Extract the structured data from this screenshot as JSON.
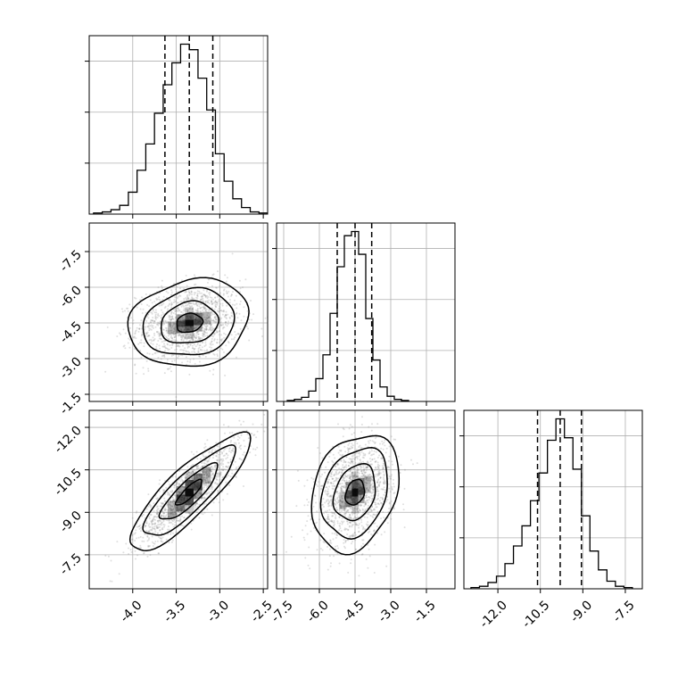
{
  "chart_data": {
    "type": "corner",
    "title": "",
    "parameters": [
      {
        "key": "p1",
        "label": "",
        "range": [
          -4.5,
          -2.45
        ],
        "quantiles": [
          -3.63,
          -3.35,
          -3.08
        ],
        "ticks": [
          "-4.0",
          "-3.5",
          "-3.0",
          "-2.5"
        ],
        "tick_values": [
          -4.0,
          -3.5,
          -3.0,
          -2.5
        ],
        "histogram": {
          "bin_centers": [
            -4.4,
            -4.3,
            -4.2,
            -4.1,
            -4.0,
            -3.9,
            -3.8,
            -3.7,
            -3.6,
            -3.5,
            -3.4,
            -3.3,
            -3.2,
            -3.1,
            -3.0,
            -2.9,
            -2.8,
            -2.7,
            -2.6,
            -2.5
          ],
          "counts": [
            1,
            2,
            4,
            8,
            20,
            40,
            64,
            92,
            118,
            138,
            155,
            150,
            124,
            95,
            55,
            30,
            14,
            6,
            2,
            1
          ]
        }
      },
      {
        "key": "p2",
        "label": "",
        "range": [
          -7.8,
          -0.3
        ],
        "quantiles": [
          -5.25,
          -4.5,
          -3.8
        ],
        "ticks": [
          "-7.5",
          "-6.0",
          "-4.5",
          "-3.0",
          "-1.5"
        ],
        "tick_values": [
          -7.5,
          -6.0,
          -4.5,
          -3.0,
          -1.5
        ],
        "histogram": {
          "bin_centers": [
            -7.2,
            -6.9,
            -6.6,
            -6.3,
            -6.0,
            -5.7,
            -5.4,
            -5.1,
            -4.8,
            -4.5,
            -4.2,
            -3.9,
            -3.6,
            -3.3,
            -3.0,
            -2.7,
            -2.4
          ],
          "counts": [
            1,
            2,
            4,
            10,
            22,
            45,
            85,
            130,
            160,
            164,
            142,
            80,
            40,
            14,
            5,
            2,
            1
          ]
        }
      },
      {
        "key": "p3",
        "label": "",
        "range": [
          -13.2,
          -6.9
        ],
        "quantiles": [
          -10.6,
          -9.8,
          -9.05
        ],
        "ticks": [
          "-12.0",
          "-10.5",
          "-9.0",
          "-7.5"
        ],
        "tick_values": [
          -12.0,
          -10.5,
          -9.0,
          -7.5
        ],
        "histogram": {
          "bin_centers": [
            -12.8,
            -12.5,
            -12.2,
            -11.9,
            -11.6,
            -11.3,
            -11.0,
            -10.7,
            -10.4,
            -10.1,
            -9.8,
            -9.5,
            -9.2,
            -8.9,
            -8.6,
            -8.3,
            -8.0,
            -7.7,
            -7.4
          ],
          "counts": [
            1,
            2,
            5,
            10,
            20,
            34,
            50,
            70,
            92,
            118,
            135,
            120,
            95,
            58,
            30,
            15,
            6,
            2,
            1
          ]
        }
      }
    ],
    "pairs": [
      {
        "x": "p1",
        "y": "p2",
        "mean": [
          -3.35,
          -4.5
        ],
        "sd": [
          0.3,
          0.8
        ],
        "rho": 0.15,
        "ylim": [
          -7.8,
          -0.3
        ]
      },
      {
        "x": "p1",
        "y": "p3",
        "mean": [
          -3.35,
          -9.8
        ],
        "sd": [
          0.3,
          0.9
        ],
        "rho": 0.85,
        "ylim": [
          -13.2,
          -6.9
        ]
      },
      {
        "x": "p2",
        "y": "p3",
        "mean": [
          -4.5,
          -9.8
        ],
        "sd": [
          0.8,
          0.9
        ],
        "rho": 0.25,
        "ylim": [
          -13.2,
          -6.9
        ]
      }
    ],
    "pair_y_ticks": {
      "p2": [
        "-1.5",
        "-3.0",
        "-4.5",
        "-6.0",
        "-7.5"
      ],
      "p3": [
        "-7.5",
        "-9.0",
        "-10.5",
        "-12.0"
      ]
    },
    "grid": true,
    "legend": "none",
    "colors": {
      "frame": "#000000",
      "grid": "#b0b0b0",
      "scatter": "#808080",
      "density": "#000000"
    }
  }
}
